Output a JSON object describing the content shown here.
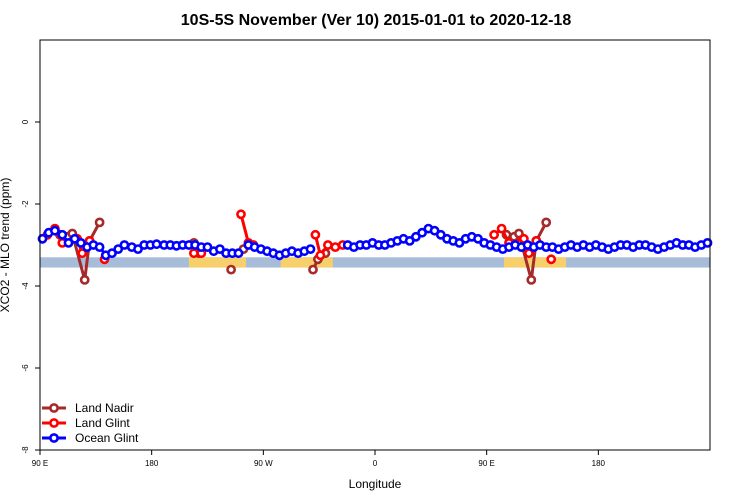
{
  "chart_data": {
    "type": "line",
    "title": "10S-5S November (Ver 10)   2015-01-01 to 2020-12-18",
    "xlabel": "Longitude",
    "ylabel": "XCO2 - MLO trend (ppm)",
    "xlim": [
      -90,
      180
    ],
    "ylim": [
      -8,
      2
    ],
    "x_ticks": [
      {
        "value": -90,
        "label": "90 E"
      },
      {
        "value": -45,
        "label": "180"
      },
      {
        "value": 0,
        "label": "90 W"
      },
      {
        "value": 45,
        "label": "0"
      },
      {
        "value": 90,
        "label": "90 E"
      },
      {
        "value": 135,
        "label": "180"
      }
    ],
    "y_ticks": [
      {
        "value": 0,
        "label": "0"
      },
      {
        "value": -2,
        "label": "-2"
      },
      {
        "value": -4,
        "label": "-4"
      },
      {
        "value": -6,
        "label": "-6"
      },
      {
        "value": -8,
        "label": "-8"
      }
    ],
    "map_band": {
      "ymin": -3.55,
      "ymax": -3.3
    },
    "land_segments": [
      [
        -30,
        -7
      ],
      [
        7,
        28
      ],
      [
        97,
        122
      ]
    ],
    "legend_position": "bottom-left",
    "series": [
      {
        "name": "Land Nadir",
        "color": "#a52a2a",
        "segments": [
          {
            "x": [
              -82,
              -79,
              -77,
              -72,
              -70,
              -66
            ],
            "y": [
              -2.75,
              -2.8,
              -2.72,
              -3.85,
              -2.9,
              -2.45
            ]
          },
          {
            "x": [
              -28,
              -26
            ],
            "y": [
              -2.95,
              -3.2
            ]
          },
          {
            "x": [
              -13
            ],
            "y": [
              -3.6
            ]
          },
          {
            "x": [
              -8
            ],
            "y": [
              -3.1
            ]
          },
          {
            "x": [
              20,
              22,
              25
            ],
            "y": [
              -3.6,
              -3.35,
              -3.2
            ]
          },
          {
            "x": [
              98,
              101,
              103,
              108,
              110,
              114
            ],
            "y": [
              -2.75,
              -2.8,
              -2.72,
              -3.85,
              -2.9,
              -2.45
            ]
          }
        ]
      },
      {
        "name": "Land Glint",
        "color": "#ff0000",
        "segments": [
          {
            "x": [
              -87,
              -84,
              -81,
              -75,
              -73,
              -70
            ],
            "y": [
              -2.75,
              -2.6,
              -2.95,
              -2.85,
              -3.2,
              -2.9
            ]
          },
          {
            "x": [
              -64
            ],
            "y": [
              -3.35
            ]
          },
          {
            "x": [
              -28,
              -25
            ],
            "y": [
              -3.2,
              -3.2
            ]
          },
          {
            "x": [
              -9,
              -6,
              -4
            ],
            "y": [
              -2.25,
              -2.95,
              -3.0
            ]
          },
          {
            "x": [
              21,
              23,
              26,
              29,
              32
            ],
            "y": [
              -2.75,
              -3.25,
              -3.0,
              -3.05,
              -3.0
            ]
          },
          {
            "x": [
              93,
              96,
              99,
              105,
              107,
              110
            ],
            "y": [
              -2.75,
              -2.6,
              -2.95,
              -2.85,
              -3.2,
              -2.9
            ]
          },
          {
            "x": [
              116
            ],
            "y": [
              -3.35
            ]
          }
        ]
      },
      {
        "name": "Ocean Glint",
        "color": "#0000ff",
        "segments": [
          {
            "x": [
              -89,
              -86.5,
              -84,
              -81,
              -78.5,
              -76,
              -73.5,
              -71,
              -68.5,
              -66,
              -63.5,
              -61,
              -58.5,
              -56,
              -53,
              -50.5,
              -48,
              -45.5,
              -43,
              -40,
              -37.5,
              -35,
              -32.5,
              -30
            ],
            "y": [
              -2.85,
              -2.7,
              -2.65,
              -2.75,
              -2.95,
              -2.85,
              -2.95,
              -3.05,
              -3.0,
              -3.05,
              -3.25,
              -3.2,
              -3.1,
              -3.0,
              -3.05,
              -3.1,
              -3.0,
              -3.0,
              -2.98,
              -3.0,
              -3.0,
              -3.02,
              -3.0,
              -3.0
            ]
          },
          {
            "x": [
              -27.5,
              -25,
              -22.5,
              -20,
              -17.5,
              -15,
              -12.5,
              -10
            ],
            "y": [
              -3.0,
              -3.05,
              -3.05,
              -3.15,
              -3.1,
              -3.2,
              -3.2,
              -3.2
            ]
          },
          {
            "x": [
              -6,
              -3.5,
              -1,
              1.5,
              4,
              6.5,
              9,
              11.5,
              14,
              16.5,
              19
            ],
            "y": [
              -3.0,
              -3.05,
              -3.1,
              -3.15,
              -3.2,
              -3.25,
              -3.2,
              -3.15,
              -3.2,
              -3.15,
              -3.1
            ]
          },
          {
            "x": [
              34,
              36.5,
              39,
              41.5,
              44,
              46.5,
              49,
              51.5,
              54,
              56.5,
              59,
              61.5,
              64,
              66.5,
              69,
              71.5,
              74,
              76.5,
              79,
              81.5,
              84,
              86.5,
              89,
              91.5,
              94,
              96.5,
              99,
              101.5,
              104,
              106.5,
              109,
              111.5,
              114,
              116.5,
              119,
              121.5,
              124,
              126.5,
              129,
              131.5,
              134,
              136.5,
              139,
              141.5,
              144,
              146.5,
              149,
              151.5,
              154,
              156.5,
              159,
              161.5,
              164,
              166.5,
              169,
              171.5,
              174,
              176.5,
              179
            ],
            "y": [
              -3.0,
              -3.05,
              -3.0,
              -3.0,
              -2.95,
              -3.0,
              -3.0,
              -2.95,
              -2.9,
              -2.85,
              -2.9,
              -2.8,
              -2.7,
              -2.6,
              -2.65,
              -2.75,
              -2.85,
              -2.9,
              -2.95,
              -2.85,
              -2.8,
              -2.85,
              -2.95,
              -3.0,
              -3.05,
              -3.1,
              -3.05,
              -3.0,
              -3.05,
              -3.0,
              -3.05,
              -3.0,
              -3.05,
              -3.05,
              -3.1,
              -3.05,
              -3.0,
              -3.05,
              -3.0,
              -3.05,
              -3.0,
              -3.05,
              -3.1,
              -3.05,
              -3.0,
              -3.0,
              -3.05,
              -3.0,
              -3.0,
              -3.05,
              -3.1,
              -3.05,
              -3.0,
              -2.95,
              -3.0,
              -3.0,
              -3.05,
              -3.0,
              -2.95
            ]
          }
        ]
      }
    ]
  }
}
